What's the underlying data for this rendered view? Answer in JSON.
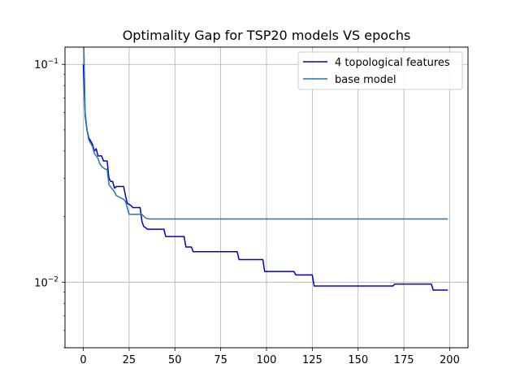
{
  "chart_data": {
    "type": "line",
    "title": "Optimality Gap for TSP20 models VS epochs",
    "xlabel": "",
    "ylabel": "",
    "xlim": [
      -10,
      210
    ],
    "ylim": [
      0.005,
      0.12
    ],
    "yscale": "log",
    "grid": true,
    "legend_position": "top-right",
    "x_ticks": [
      0,
      25,
      50,
      75,
      100,
      125,
      150,
      175,
      200
    ],
    "x_tick_labels": [
      "0",
      "25",
      "50",
      "75",
      "100",
      "125",
      "150",
      "175",
      "200"
    ],
    "y_ticks": [
      0.01,
      0.1
    ],
    "y_tick_labels": [
      {
        "base": "10",
        "exp": "−2"
      },
      {
        "base": "10",
        "exp": "−1"
      }
    ],
    "series": [
      {
        "name": "4 topological features",
        "color": "#0000cd",
        "points": [
          [
            0,
            0.1
          ],
          [
            1,
            0.058
          ],
          [
            2,
            0.05
          ],
          [
            3,
            0.046
          ],
          [
            5,
            0.043
          ],
          [
            6,
            0.04
          ],
          [
            7,
            0.041
          ],
          [
            8,
            0.038
          ],
          [
            10,
            0.038
          ],
          [
            11,
            0.036
          ],
          [
            13,
            0.036
          ],
          [
            14,
            0.03
          ],
          [
            15,
            0.029
          ],
          [
            16,
            0.029
          ],
          [
            17,
            0.027
          ],
          [
            18,
            0.0275
          ],
          [
            22,
            0.0275
          ],
          [
            23,
            0.025
          ],
          [
            24,
            0.023
          ],
          [
            26,
            0.0225
          ],
          [
            27,
            0.022
          ],
          [
            31,
            0.022
          ],
          [
            32,
            0.019
          ],
          [
            33,
            0.018
          ],
          [
            34,
            0.0178
          ],
          [
            35,
            0.0175
          ],
          [
            44,
            0.0175
          ],
          [
            45,
            0.0162
          ],
          [
            55,
            0.0162
          ],
          [
            56,
            0.0145
          ],
          [
            59,
            0.0145
          ],
          [
            60,
            0.0138
          ],
          [
            84,
            0.0138
          ],
          [
            85,
            0.0127
          ],
          [
            98,
            0.0127
          ],
          [
            99,
            0.0112
          ],
          [
            115,
            0.0112
          ],
          [
            116,
            0.0108
          ],
          [
            125,
            0.0108
          ],
          [
            126,
            0.0096
          ],
          [
            169,
            0.0096
          ],
          [
            170,
            0.0098
          ],
          [
            190,
            0.0098
          ],
          [
            191,
            0.0092
          ],
          [
            199,
            0.0092
          ]
        ]
      },
      {
        "name": "base model",
        "color": "#1f77b4",
        "points": [
          [
            0,
            0.16
          ],
          [
            1,
            0.06
          ],
          [
            2,
            0.05
          ],
          [
            3,
            0.045
          ],
          [
            5,
            0.042
          ],
          [
            6,
            0.039
          ],
          [
            8,
            0.037
          ],
          [
            9,
            0.035
          ],
          [
            10,
            0.034
          ],
          [
            12,
            0.033
          ],
          [
            13,
            0.033
          ],
          [
            14,
            0.028
          ],
          [
            17,
            0.026
          ],
          [
            18,
            0.025
          ],
          [
            22,
            0.024
          ],
          [
            23,
            0.0235
          ],
          [
            25,
            0.0205
          ],
          [
            32,
            0.0205
          ],
          [
            34,
            0.0197
          ],
          [
            36,
            0.0195
          ],
          [
            199,
            0.0195
          ]
        ]
      }
    ]
  }
}
